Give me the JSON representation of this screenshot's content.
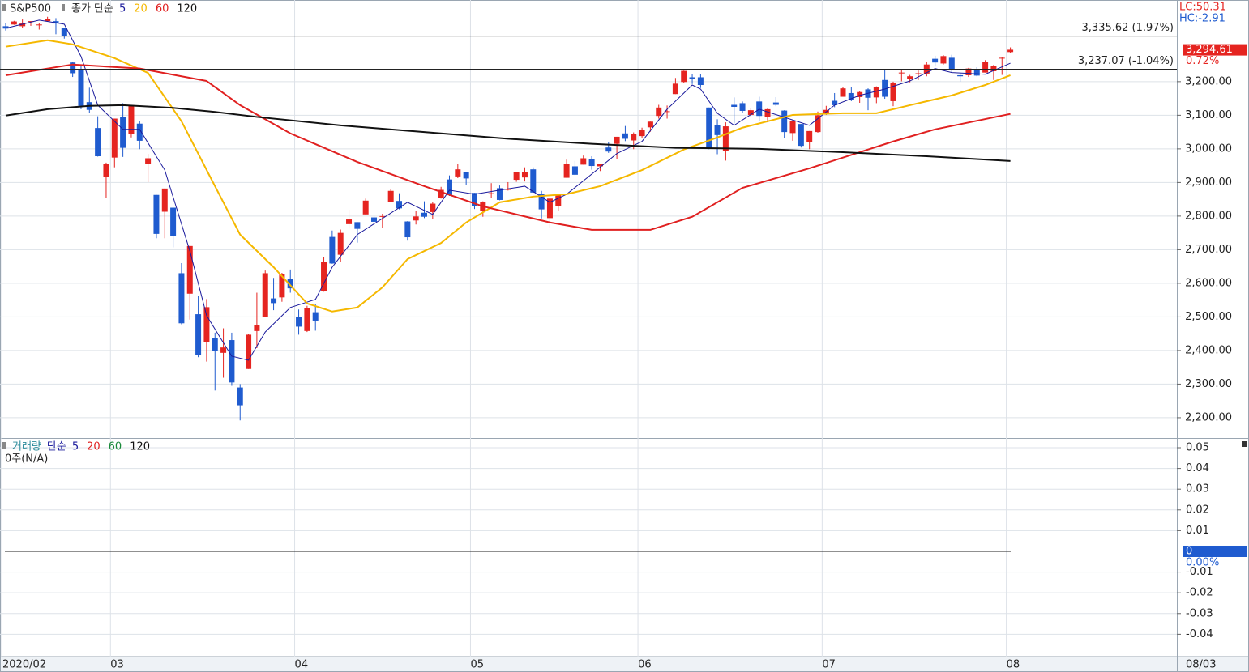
{
  "chart_data": [
    {
      "type": "candlestick",
      "title": "S&P500",
      "ma_label": "종가 단순",
      "up_color": "#e52420",
      "down_color": "#1f5bcf",
      "ohlc": [
        [
          3365,
          3375,
          3352,
          3358
        ],
        [
          3370,
          3381,
          3369,
          3379
        ],
        [
          3365,
          3385,
          3360,
          3373
        ],
        [
          3378,
          3380,
          3366,
          3380
        ],
        [
          3369,
          3375,
          3355,
          3370
        ],
        [
          3380,
          3393,
          3379,
          3386
        ],
        [
          3380,
          3389,
          3341,
          3373
        ],
        [
          3360,
          3360,
          3328,
          3337
        ],
        [
          3257,
          3259,
          3214,
          3225
        ],
        [
          3238,
          3247,
          3118,
          3128
        ],
        [
          3139,
          3182,
          3108,
          3116
        ],
        [
          3062,
          3097,
          2977,
          2978
        ],
        [
          2916,
          2959,
          2855,
          2954
        ],
        [
          2974,
          3090,
          2945,
          3090
        ],
        [
          3096,
          3136,
          2976,
          3003
        ],
        [
          3045,
          3130,
          3034,
          3130
        ],
        [
          3075,
          3083,
          2999,
          3024
        ],
        [
          2954,
          2985,
          2901,
          2972
        ],
        [
          2863,
          2863,
          2734,
          2747
        ],
        [
          2813,
          2882,
          2734,
          2882
        ],
        [
          2825,
          2825,
          2707,
          2741
        ],
        [
          2630,
          2660,
          2478,
          2481
        ],
        [
          2569,
          2711,
          2492,
          2711
        ],
        [
          2508,
          2562,
          2380,
          2386
        ],
        [
          2425,
          2553,
          2367,
          2529
        ],
        [
          2436,
          2453,
          2281,
          2398
        ],
        [
          2393,
          2466,
          2319,
          2409
        ],
        [
          2431,
          2453,
          2295,
          2305
        ],
        [
          2290,
          2300,
          2192,
          2237
        ],
        [
          2345,
          2449,
          2345,
          2447
        ],
        [
          2458,
          2572,
          2407,
          2476
        ],
        [
          2501,
          2638,
          2501,
          2630
        ],
        [
          2555,
          2616,
          2520,
          2541
        ],
        [
          2558,
          2631,
          2545,
          2627
        ],
        [
          2614,
          2641,
          2572,
          2585
        ],
        [
          2499,
          2522,
          2447,
          2471
        ],
        [
          2458,
          2533,
          2455,
          2527
        ],
        [
          2514,
          2538,
          2459,
          2489
        ],
        [
          2578,
          2677,
          2575,
          2664
        ],
        [
          2738,
          2757,
          2658,
          2659
        ],
        [
          2685,
          2760,
          2663,
          2750
        ],
        [
          2776,
          2819,
          2762,
          2790
        ],
        [
          2782,
          2782,
          2721,
          2762
        ],
        [
          2805,
          2852,
          2805,
          2846
        ],
        [
          2796,
          2801,
          2761,
          2783
        ],
        [
          2799,
          2807,
          2764,
          2800
        ],
        [
          2842,
          2880,
          2842,
          2875
        ],
        [
          2845,
          2868,
          2820,
          2823
        ],
        [
          2784,
          2785,
          2727,
          2737
        ],
        [
          2787,
          2815,
          2775,
          2799
        ],
        [
          2810,
          2844,
          2794,
          2798
        ],
        [
          2812,
          2842,
          2791,
          2837
        ],
        [
          2854,
          2887,
          2852,
          2878
        ],
        [
          2909,
          2921,
          2860,
          2863
        ],
        [
          2918,
          2954,
          2913,
          2939
        ],
        [
          2930,
          2931,
          2892,
          2912
        ],
        [
          2869,
          2869,
          2821,
          2831
        ],
        [
          2815,
          2844,
          2798,
          2842
        ],
        [
          2868,
          2898,
          2853,
          2868
        ],
        [
          2883,
          2891,
          2847,
          2848
        ],
        [
          2878,
          2901,
          2876,
          2881
        ],
        [
          2908,
          2932,
          2902,
          2930
        ],
        [
          2915,
          2945,
          2903,
          2930
        ],
        [
          2939,
          2945,
          2869,
          2870
        ],
        [
          2865,
          2875,
          2793,
          2820
        ],
        [
          2794,
          2852,
          2766,
          2852
        ],
        [
          2829,
          2865,
          2816,
          2864
        ],
        [
          2914,
          2968,
          2914,
          2954
        ],
        [
          2948,
          2964,
          2922,
          2923
        ],
        [
          2953,
          2980,
          2953,
          2972
        ],
        [
          2969,
          2978,
          2938,
          2949
        ],
        [
          2948,
          2956,
          2934,
          2955
        ],
        [
          3004,
          3021,
          2988,
          2992
        ],
        [
          3015,
          3036,
          2969,
          3036
        ],
        [
          3046,
          3068,
          3023,
          3030
        ],
        [
          3025,
          3049,
          2999,
          3044
        ],
        [
          3038,
          3063,
          3032,
          3056
        ],
        [
          3064,
          3081,
          3051,
          3081
        ],
        [
          3098,
          3131,
          3090,
          3123
        ],
        [
          3112,
          3129,
          3090,
          3112
        ],
        [
          3163,
          3211,
          3163,
          3194
        ],
        [
          3199,
          3233,
          3196,
          3232
        ],
        [
          3213,
          3222,
          3193,
          3207
        ],
        [
          3213,
          3223,
          3181,
          3190
        ],
        [
          3123,
          3123,
          2999,
          3002
        ],
        [
          3071,
          3088,
          2984,
          3041
        ],
        [
          2993,
          3079,
          2965,
          3067
        ],
        [
          3131,
          3153,
          3076,
          3125
        ],
        [
          3136,
          3141,
          3108,
          3113
        ],
        [
          3101,
          3121,
          3094,
          3115
        ],
        [
          3141,
          3155,
          3083,
          3098
        ],
        [
          3095,
          3120,
          3079,
          3118
        ],
        [
          3138,
          3154,
          3127,
          3131
        ],
        [
          3114,
          3115,
          3032,
          3050
        ],
        [
          3047,
          3086,
          3024,
          3084
        ],
        [
          3074,
          3074,
          3004,
          3009
        ],
        [
          3019,
          3053,
          2999,
          3053
        ],
        [
          3050,
          3111,
          3048,
          3100
        ],
        [
          3105,
          3128,
          3101,
          3116
        ],
        [
          3143,
          3166,
          3124,
          3130
        ],
        [
          3155,
          3183,
          3155,
          3180
        ],
        [
          3166,
          3184,
          3142,
          3145
        ],
        [
          3154,
          3172,
          3137,
          3169
        ],
        [
          3177,
          3180,
          3115,
          3152
        ],
        [
          3153,
          3186,
          3136,
          3185
        ],
        [
          3205,
          3235,
          3149,
          3155
        ],
        [
          3142,
          3200,
          3127,
          3197
        ],
        [
          3225,
          3238,
          3201,
          3227
        ],
        [
          3209,
          3220,
          3198,
          3216
        ],
        [
          3224,
          3233,
          3205,
          3225
        ],
        [
          3224,
          3258,
          3216,
          3251
        ],
        [
          3268,
          3277,
          3245,
          3257
        ],
        [
          3254,
          3279,
          3251,
          3276
        ],
        [
          3271,
          3280,
          3228,
          3236
        ],
        [
          3219,
          3227,
          3200,
          3216
        ],
        [
          3219,
          3241,
          3214,
          3239
        ],
        [
          3234,
          3243,
          3216,
          3218
        ],
        [
          3227,
          3264,
          3227,
          3258
        ],
        [
          3231,
          3250,
          3205,
          3246
        ],
        [
          3270,
          3272,
          3220,
          3271
        ],
        [
          3288,
          3302,
          3284,
          3295
        ]
      ],
      "xticks": [
        {
          "value": 0,
          "label": "2020/02"
        },
        {
          "value": 13,
          "label": "03"
        },
        {
          "value": 35,
          "label": "04"
        },
        {
          "value": 56,
          "label": "05"
        },
        {
          "value": 76,
          "label": "06"
        },
        {
          "value": 98,
          "label": "07"
        },
        {
          "value": 120,
          "label": "08"
        }
      ],
      "ylim": [
        2142,
        3443
      ],
      "yticks": [
        {
          "value": 2200,
          "label": "2,200.00"
        },
        {
          "value": 2300,
          "label": "2,300.00"
        },
        {
          "value": 2400,
          "label": "2,400.00"
        },
        {
          "value": 2500,
          "label": "2,500.00"
        },
        {
          "value": 2600,
          "label": "2,600.00"
        },
        {
          "value": 2700,
          "label": "2,700.00"
        },
        {
          "value": 2800,
          "label": "2,800.00"
        },
        {
          "value": 2900,
          "label": "2,900.00"
        },
        {
          "value": 3000,
          "label": "3,000.00"
        },
        {
          "value": 3100,
          "label": "3,100.00"
        },
        {
          "value": 3200,
          "label": "3,200.00"
        }
      ],
      "series": [
        {
          "name": "5",
          "color": "#1a1a9c",
          "x": [
            0,
            4,
            7,
            9,
            11,
            14,
            16,
            19,
            22,
            24,
            27,
            29,
            31,
            34,
            37,
            39,
            42,
            45,
            48,
            51,
            53,
            56,
            59,
            62,
            65,
            67,
            70,
            73,
            76,
            79,
            82,
            83,
            85,
            87,
            90,
            93,
            96,
            99,
            102,
            105,
            108,
            111,
            113,
            117,
            120
          ],
          "values": [
            3359,
            3383,
            3371,
            3275,
            3130,
            3058,
            3058,
            2937,
            2696,
            2504,
            2383,
            2371,
            2455,
            2528,
            2552,
            2648,
            2745,
            2793,
            2841,
            2805,
            2877,
            2865,
            2877,
            2889,
            2841,
            2865,
            2925,
            2986,
            3022,
            3118,
            3190,
            3178,
            3106,
            3070,
            3118,
            3094,
            3070,
            3130,
            3159,
            3178,
            3202,
            3239,
            3227,
            3222,
            3255
          ]
        },
        {
          "name": "20",
          "color": "#f5b800",
          "x": [
            0,
            5,
            8,
            13,
            17,
            21,
            25,
            28,
            32,
            36,
            39,
            42,
            45,
            48,
            52,
            55,
            59,
            63,
            67,
            71,
            76,
            81,
            85,
            88,
            94,
            100,
            104,
            108,
            113,
            117,
            120
          ],
          "values": [
            3304,
            3323,
            3311,
            3270,
            3226,
            3082,
            2889,
            2745,
            2648,
            2540,
            2516,
            2528,
            2588,
            2672,
            2720,
            2781,
            2841,
            2858,
            2865,
            2889,
            2937,
            2998,
            3034,
            3063,
            3101,
            3106,
            3106,
            3130,
            3159,
            3190,
            3219
          ]
        },
        {
          "name": "60",
          "color": "#e02020",
          "x": [
            0,
            8,
            16,
            24,
            28,
            34,
            42,
            50,
            57,
            65,
            70,
            77,
            82,
            88,
            96,
            106,
            111,
            120
          ],
          "values": [
            3219,
            3251,
            3239,
            3202,
            3130,
            3046,
            2961,
            2889,
            2829,
            2781,
            2759,
            2759,
            2798,
            2884,
            2942,
            3022,
            3058,
            3104
          ]
        },
        {
          "name": "120",
          "color": "#111111",
          "x": [
            0,
            5,
            10,
            14,
            20,
            25,
            30,
            40,
            50,
            60,
            70,
            80,
            90,
            100,
            110,
            120
          ],
          "values": [
            3099,
            3118,
            3128,
            3130,
            3122,
            3110,
            3095,
            3070,
            3050,
            3030,
            3015,
            3003,
            3000,
            2990,
            2978,
            2964
          ]
        }
      ],
      "hlines": [
        {
          "value": 3335.62,
          "label": "3,335.62 (1.97%)"
        },
        {
          "value": 3237.07,
          "label": "3,237.07 (-1.04%)"
        }
      ],
      "last": {
        "value": 3294.61,
        "label": "3,294.61",
        "change": "0.72%"
      },
      "lc": "LC:50.31",
      "hc": "HC:-2.91",
      "current_date": "08/03",
      "grid": true
    },
    {
      "type": "volume",
      "title": "거래량",
      "ma_label": "단순",
      "note": "0주(N/A)",
      "series": [
        {
          "name": "5",
          "color": "#1a1a9c"
        },
        {
          "name": "20",
          "color": "#e02020"
        },
        {
          "name": "60",
          "color": "#1a8a3a"
        },
        {
          "name": "120",
          "color": "#111111"
        }
      ],
      "ylim": [
        -0.0504,
        0.0543
      ],
      "yticks": [
        0.05,
        0.04,
        0.03,
        0.02,
        0.01,
        -0.01,
        -0.02,
        -0.03,
        -0.04
      ],
      "hline": {
        "value": 0,
        "label": "0",
        "change": "0.00%"
      },
      "grid": true
    }
  ]
}
